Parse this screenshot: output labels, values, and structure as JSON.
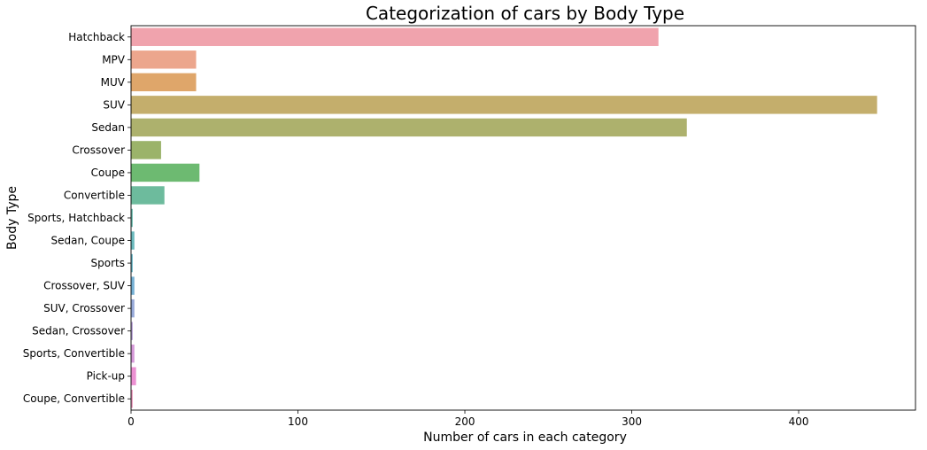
{
  "chart_data": {
    "type": "bar",
    "orientation": "horizontal",
    "title": "Categorization of cars by Body Type",
    "xlabel": "Number of cars in each category",
    "ylabel": "Body Type",
    "xlim": [
      0,
      470
    ],
    "xticks": [
      "0",
      "100",
      "200",
      "300",
      "400"
    ],
    "grid": false,
    "categories": [
      "Hatchback",
      "MPV",
      "MUV",
      "SUV",
      "Sedan",
      "Crossover",
      "Coupe",
      "Convertible",
      "Sports, Hatchback",
      "Sedan, Coupe",
      "Sports",
      "Crossover, SUV",
      "SUV, Crossover",
      "Sedan, Crossover",
      "Sports, Convertible",
      "Pick-up",
      "Coupe, Convertible"
    ],
    "values": [
      316,
      39,
      39,
      447,
      333,
      18,
      41,
      20,
      1,
      2,
      1,
      2,
      2,
      1,
      2,
      3,
      1
    ],
    "colors": [
      "#f0a3ad",
      "#eca68d",
      "#dfa66a",
      "#c4ae6c",
      "#adb16d",
      "#9bb36a",
      "#6dba71",
      "#6dbb9d",
      "#6ebcb0",
      "#6ab9bd",
      "#6cb7c7",
      "#75b0d4",
      "#96a9d8",
      "#b8a2d8",
      "#d598d8",
      "#ec91d2",
      "#ef9bbf"
    ]
  }
}
